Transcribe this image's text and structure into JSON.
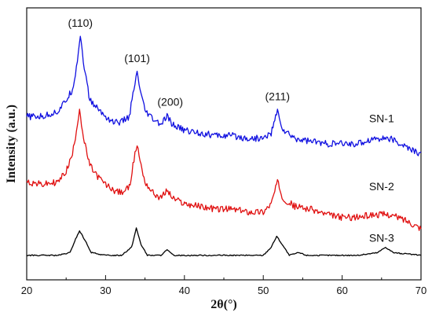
{
  "chart_data": {
    "type": "line",
    "title": "",
    "xlabel": "2θ(°)",
    "ylabel": "Intensity (a.u.)",
    "xlim": [
      20,
      70
    ],
    "x_ticks": [
      20,
      30,
      40,
      50,
      60,
      70
    ],
    "grid": false,
    "legend": "none",
    "series": [
      {
        "name": "SN-1",
        "color": "#1010e0",
        "points": [
          [
            20,
            0.6
          ],
          [
            22,
            0.6
          ],
          [
            24,
            0.62
          ],
          [
            25,
            0.66
          ],
          [
            25.8,
            0.7
          ],
          [
            26.3,
            0.78
          ],
          [
            26.8,
            0.9
          ],
          [
            27.3,
            0.78
          ],
          [
            28,
            0.66
          ],
          [
            29,
            0.63
          ],
          [
            30,
            0.6
          ],
          [
            31,
            0.58
          ],
          [
            32,
            0.58
          ],
          [
            33,
            0.6
          ],
          [
            33.6,
            0.7
          ],
          [
            34.0,
            0.76
          ],
          [
            34.5,
            0.68
          ],
          [
            35,
            0.62
          ],
          [
            36,
            0.59
          ],
          [
            37,
            0.57
          ],
          [
            37.8,
            0.6
          ],
          [
            38.5,
            0.57
          ],
          [
            40,
            0.55
          ],
          [
            42,
            0.54
          ],
          [
            44,
            0.53
          ],
          [
            46,
            0.53
          ],
          [
            48,
            0.52
          ],
          [
            50,
            0.52
          ],
          [
            51,
            0.54
          ],
          [
            51.8,
            0.62
          ],
          [
            52.5,
            0.55
          ],
          [
            54,
            0.52
          ],
          [
            56,
            0.51
          ],
          [
            58,
            0.5
          ],
          [
            60,
            0.5
          ],
          [
            62,
            0.5
          ],
          [
            64,
            0.52
          ],
          [
            66,
            0.52
          ],
          [
            68,
            0.49
          ],
          [
            70,
            0.46
          ]
        ]
      },
      {
        "name": "SN-2",
        "color": "#e01010",
        "points": [
          [
            20,
            0.36
          ],
          [
            22,
            0.35
          ],
          [
            24,
            0.36
          ],
          [
            25,
            0.4
          ],
          [
            25.8,
            0.46
          ],
          [
            26.3,
            0.55
          ],
          [
            26.7,
            0.63
          ],
          [
            27.2,
            0.52
          ],
          [
            28,
            0.42
          ],
          [
            29,
            0.38
          ],
          [
            30,
            0.35
          ],
          [
            31,
            0.33
          ],
          [
            32,
            0.32
          ],
          [
            33,
            0.34
          ],
          [
            33.6,
            0.44
          ],
          [
            34.0,
            0.5
          ],
          [
            34.5,
            0.42
          ],
          [
            35,
            0.36
          ],
          [
            36,
            0.32
          ],
          [
            37,
            0.3
          ],
          [
            37.8,
            0.33
          ],
          [
            38.5,
            0.3
          ],
          [
            40,
            0.28
          ],
          [
            42,
            0.27
          ],
          [
            44,
            0.26
          ],
          [
            46,
            0.26
          ],
          [
            48,
            0.25
          ],
          [
            50,
            0.25
          ],
          [
            51,
            0.28
          ],
          [
            51.8,
            0.36
          ],
          [
            52.5,
            0.3
          ],
          [
            54,
            0.27
          ],
          [
            56,
            0.26
          ],
          [
            58,
            0.24
          ],
          [
            60,
            0.23
          ],
          [
            62,
            0.23
          ],
          [
            64,
            0.24
          ],
          [
            66,
            0.24
          ],
          [
            68,
            0.22
          ],
          [
            70,
            0.19
          ]
        ]
      },
      {
        "name": "SN-3",
        "color": "#000000",
        "points": [
          [
            20,
            0.09
          ],
          [
            24,
            0.09
          ],
          [
            25.5,
            0.1
          ],
          [
            26.2,
            0.15
          ],
          [
            26.7,
            0.18
          ],
          [
            27.3,
            0.15
          ],
          [
            28.2,
            0.1
          ],
          [
            30,
            0.09
          ],
          [
            32,
            0.09
          ],
          [
            33.3,
            0.12
          ],
          [
            33.9,
            0.19
          ],
          [
            34.5,
            0.13
          ],
          [
            35.3,
            0.09
          ],
          [
            37,
            0.09
          ],
          [
            37.8,
            0.11
          ],
          [
            38.6,
            0.09
          ],
          [
            50,
            0.09
          ],
          [
            51,
            0.12
          ],
          [
            51.7,
            0.16
          ],
          [
            52.4,
            0.13
          ],
          [
            53.3,
            0.09
          ],
          [
            54.5,
            0.1
          ],
          [
            55.5,
            0.09
          ],
          [
            58,
            0.09
          ],
          [
            62,
            0.09
          ],
          [
            64.5,
            0.1
          ],
          [
            65.5,
            0.12
          ],
          [
            66.5,
            0.1
          ],
          [
            70,
            0.09
          ]
        ]
      }
    ],
    "annotations": [
      {
        "text": "(110)",
        "x": 26.8,
        "y": 0.93
      },
      {
        "text": "(101)",
        "x": 34.0,
        "y": 0.8
      },
      {
        "text": "(200)",
        "x": 38.2,
        "y": 0.64
      },
      {
        "text": "(211)",
        "x": 51.8,
        "y": 0.66
      }
    ],
    "series_labels": [
      {
        "text": "SN-1",
        "x": 65.0,
        "y": 0.58
      },
      {
        "text": "SN-2",
        "x": 65.0,
        "y": 0.33
      },
      {
        "text": "SN-3",
        "x": 65.0,
        "y": 0.14
      }
    ]
  }
}
